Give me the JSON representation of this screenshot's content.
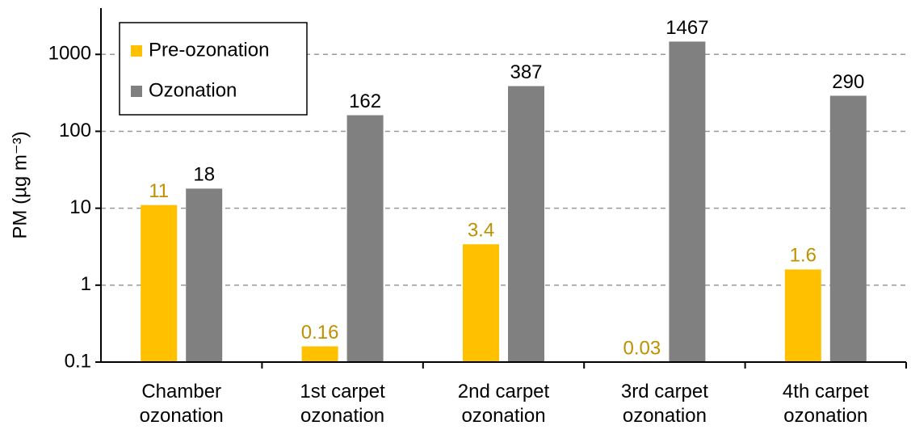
{
  "chart_data": {
    "type": "bar",
    "log_scale": true,
    "y_label": "PM (µg m⁻³)",
    "categories": [
      "Chamber ozonation",
      "1st carpet ozonation",
      "2nd carpet ozonation",
      "3rd carpet ozonation",
      "4th carpet ozonation"
    ],
    "series": [
      {
        "name": "Pre-ozonation",
        "color": "#ffc000",
        "label_color": "#bf9000",
        "values": [
          11,
          0.16,
          3.4,
          0.03,
          1.6
        ]
      },
      {
        "name": "Ozonation",
        "color": "#808080",
        "label_color": "#000000",
        "values": [
          18,
          162,
          387,
          1467,
          290
        ]
      }
    ],
    "ylim": [
      0.1,
      4000
    ],
    "yticks": [
      0.1,
      1,
      10,
      100,
      1000
    ],
    "grid": true,
    "legend": "upper left"
  }
}
